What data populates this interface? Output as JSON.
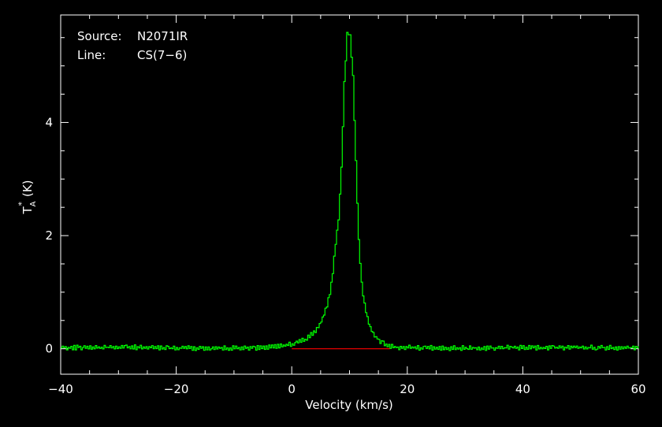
{
  "chart_data": {
    "type": "line",
    "title": "",
    "annotations": {
      "source_label": "Source:",
      "source_value": "N2071IR",
      "line_label": "Line:",
      "line_value": "CS(7−6)"
    },
    "xlabel": "Velocity (km/s)",
    "ylabel": "T",
    "ylabel_sub": "A",
    "ylabel_sup": "*",
    "ylabel_unit": "(K)",
    "xlim": [
      -40,
      60
    ],
    "ylim": [
      -0.45,
      5.9
    ],
    "xticks": [
      -40,
      -20,
      0,
      20,
      40,
      60
    ],
    "xtick_labels": [
      "−40",
      "−20",
      "0",
      "20",
      "40",
      "60"
    ],
    "yticks": [
      0,
      2,
      4
    ],
    "ytick_labels": [
      "0",
      "2",
      "4"
    ],
    "grid": false,
    "series": [
      {
        "color": "#00ff00",
        "x": [
          -40,
          -30,
          -20,
          -10,
          -5,
          0,
          2,
          3,
          4,
          5,
          6,
          6.5,
          7,
          7.5,
          8,
          8.5,
          9,
          9.5,
          10,
          10.5,
          11,
          11.5,
          12,
          12.5,
          13,
          13.5,
          14,
          15,
          16,
          17,
          18,
          20,
          30,
          40,
          50,
          60
        ],
        "y": [
          0.02,
          0.03,
          0.01,
          0.01,
          0.02,
          0.08,
          0.15,
          0.22,
          0.32,
          0.48,
          0.75,
          1.0,
          1.35,
          1.85,
          2.3,
          3.2,
          4.7,
          5.55,
          5.55,
          4.8,
          3.3,
          1.9,
          1.15,
          0.8,
          0.55,
          0.38,
          0.25,
          0.15,
          0.08,
          0.04,
          0.02,
          0.02,
          0.01,
          0.02,
          0.02,
          0.02
        ]
      },
      {
        "color": "#ff0000",
        "x": [
          0,
          17
        ],
        "y": [
          0,
          0
        ]
      }
    ]
  }
}
